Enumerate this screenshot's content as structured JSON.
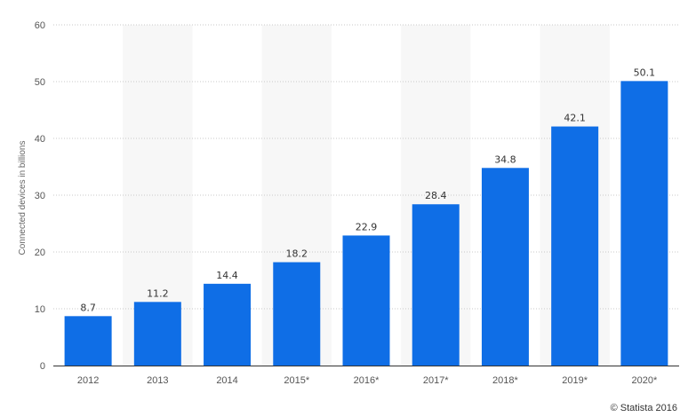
{
  "chart_data": {
    "type": "bar",
    "categories": [
      "2012",
      "2013",
      "2014",
      "2015*",
      "2016*",
      "2017*",
      "2018*",
      "2019*",
      "2020*"
    ],
    "values": [
      8.7,
      11.2,
      14.4,
      18.2,
      22.9,
      28.4,
      34.8,
      42.1,
      50.1
    ],
    "value_labels": [
      "8.7",
      "11.2",
      "14.4",
      "18.2",
      "22.9",
      "28.4",
      "34.8",
      "42.1",
      "50.1"
    ],
    "title": "",
    "xlabel": "",
    "ylabel": "Connected devices in billions",
    "ylim": [
      0,
      60
    ],
    "yticks": [
      "0",
      "10",
      "20",
      "30",
      "40",
      "50",
      "60"
    ],
    "grid": true,
    "legend": "none",
    "bar_color": "#0f6ee6",
    "band_color": "#f7f7f7",
    "grid_color": "#c8c8c8"
  },
  "credit": "© Statista 2016"
}
